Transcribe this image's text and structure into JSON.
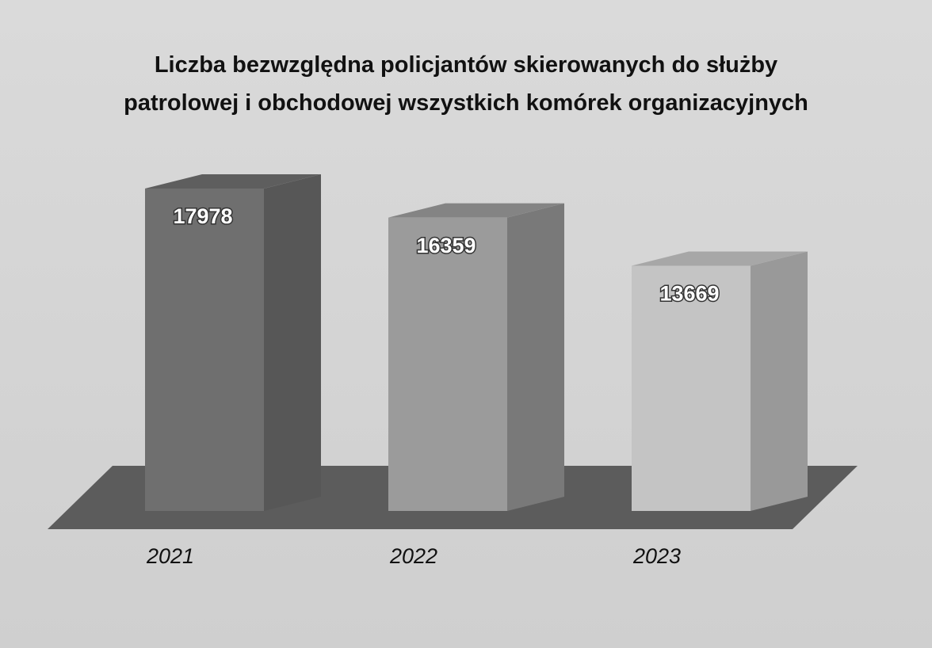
{
  "chart_data": {
    "type": "bar3d",
    "title": "Liczba bezwzględna policjantów skierowanych do służby\npatrolowej i obchodowej wszystkich komórek organizacyjnych",
    "categories": [
      "2021",
      "2022",
      "2023"
    ],
    "values": [
      17978,
      16359,
      13669
    ],
    "colors": [
      "#6f6f6f",
      "#9b9b9b",
      "#c4c4c4"
    ]
  }
}
